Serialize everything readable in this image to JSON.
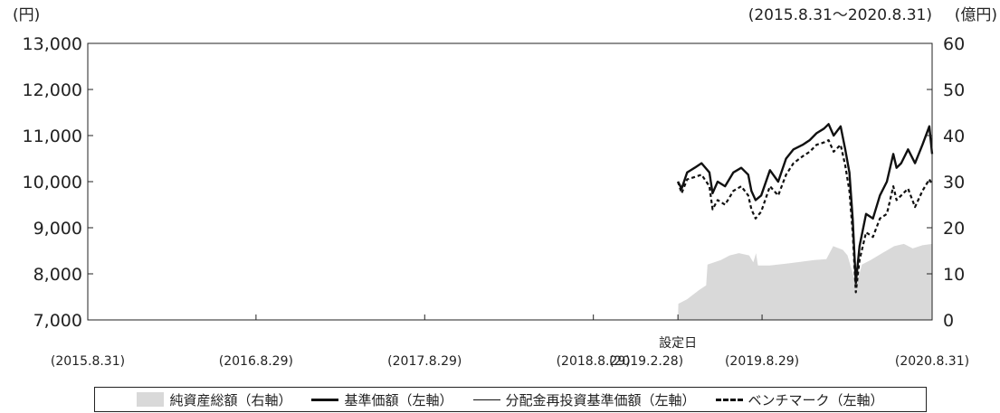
{
  "chart_data": {
    "type": "line",
    "unit_left": "(円)",
    "unit_right": "(億円)",
    "period": "(2015.8.31～2020.8.31)",
    "y_left": {
      "min": 7000,
      "max": 13000,
      "ticks": [
        "7,000",
        "8,000",
        "9,000",
        "10,000",
        "11,000",
        "12,000",
        "13,000"
      ]
    },
    "y_right": {
      "min": 0,
      "max": 60,
      "ticks": [
        "0",
        "10",
        "20",
        "30",
        "40",
        "50",
        "60"
      ]
    },
    "x_ticks": [
      "(2015.8.31)",
      "(2016.8.29)",
      "(2017.8.29)",
      "(2018.8.29)",
      "(2019.2.28)",
      "(2019.8.29)",
      "(2020.8.31)"
    ],
    "x_tick_dates": [
      "2015-08-31",
      "2016-08-29",
      "2017-08-29",
      "2018-08-29",
      "2019-02-28",
      "2019-08-29",
      "2020-08-31"
    ],
    "inception_label": "設定日",
    "inception_date": "2019-02-28",
    "legend": [
      "純資産総額（右軸）",
      "基準価額（左軸）",
      "分配金再投資基準価額（左軸）",
      "ベンチマーク（左軸）"
    ],
    "series": [
      {
        "name": "純資産総額（右軸）",
        "axis": "right",
        "style": "area",
        "color": "#d9d9d9",
        "points": [
          [
            "2019-02-28",
            0
          ],
          [
            "2019-03-01",
            3.5
          ],
          [
            "2019-03-20",
            4.5
          ],
          [
            "2019-04-15",
            6.5
          ],
          [
            "2019-04-30",
            7.5
          ],
          [
            "2019-05-03",
            12.0
          ],
          [
            "2019-06-01",
            13.0
          ],
          [
            "2019-06-20",
            14.0
          ],
          [
            "2019-07-10",
            14.5
          ],
          [
            "2019-08-01",
            14.0
          ],
          [
            "2019-08-10",
            12.5
          ],
          [
            "2019-08-16",
            14.5
          ],
          [
            "2019-08-20",
            11.8
          ],
          [
            "2019-09-15",
            11.8
          ],
          [
            "2019-10-20",
            12.2
          ],
          [
            "2019-11-20",
            12.6
          ],
          [
            "2019-12-20",
            13.0
          ],
          [
            "2020-01-15",
            13.2
          ],
          [
            "2020-01-30",
            16.0
          ],
          [
            "2020-02-20",
            15.2
          ],
          [
            "2020-03-01",
            14.0
          ],
          [
            "2020-03-20",
            7.5
          ],
          [
            "2020-04-01",
            12.0
          ],
          [
            "2020-04-20",
            13.0
          ],
          [
            "2020-05-15",
            14.5
          ],
          [
            "2020-06-10",
            16.0
          ],
          [
            "2020-07-01",
            16.5
          ],
          [
            "2020-07-20",
            15.5
          ],
          [
            "2020-08-10",
            16.2
          ],
          [
            "2020-08-31",
            16.5
          ]
        ]
      },
      {
        "name": "基準価額（左軸）",
        "axis": "left",
        "style": "solid",
        "color": "#111111",
        "points": [
          [
            "2019-02-28",
            10000
          ],
          [
            "2019-03-08",
            9850
          ],
          [
            "2019-03-20",
            10200
          ],
          [
            "2019-04-05",
            10300
          ],
          [
            "2019-04-20",
            10400
          ],
          [
            "2019-05-07",
            10200
          ],
          [
            "2019-05-14",
            9750
          ],
          [
            "2019-05-25",
            10000
          ],
          [
            "2019-06-10",
            9900
          ],
          [
            "2019-06-28",
            10200
          ],
          [
            "2019-07-15",
            10300
          ],
          [
            "2019-07-30",
            10150
          ],
          [
            "2019-08-06",
            9800
          ],
          [
            "2019-08-15",
            9600
          ],
          [
            "2019-08-27",
            9700
          ],
          [
            "2019-09-15",
            10250
          ],
          [
            "2019-10-03",
            10000
          ],
          [
            "2019-10-20",
            10500
          ],
          [
            "2019-11-05",
            10700
          ],
          [
            "2019-11-25",
            10800
          ],
          [
            "2019-12-10",
            10900
          ],
          [
            "2019-12-25",
            11050
          ],
          [
            "2020-01-10",
            11150
          ],
          [
            "2020-01-20",
            11250
          ],
          [
            "2020-01-31",
            11000
          ],
          [
            "2020-02-15",
            11200
          ],
          [
            "2020-02-25",
            10700
          ],
          [
            "2020-03-05",
            10200
          ],
          [
            "2020-03-12",
            9200
          ],
          [
            "2020-03-19",
            7800
          ],
          [
            "2020-03-27",
            8600
          ],
          [
            "2020-04-10",
            9300
          ],
          [
            "2020-04-25",
            9200
          ],
          [
            "2020-05-10",
            9700
          ],
          [
            "2020-05-25",
            10000
          ],
          [
            "2020-06-08",
            10600
          ],
          [
            "2020-06-15",
            10300
          ],
          [
            "2020-06-25",
            10400
          ],
          [
            "2020-07-10",
            10700
          ],
          [
            "2020-07-25",
            10400
          ],
          [
            "2020-08-10",
            10800
          ],
          [
            "2020-08-25",
            11200
          ],
          [
            "2020-08-31",
            10600
          ]
        ]
      },
      {
        "name": "分配金再投資基準価額（左軸）",
        "axis": "left",
        "style": "solid-thin",
        "color": "#111111",
        "points": [
          [
            "2019-02-28",
            10000
          ],
          [
            "2019-03-08",
            9850
          ],
          [
            "2019-03-20",
            10200
          ],
          [
            "2019-04-05",
            10300
          ],
          [
            "2019-04-20",
            10400
          ],
          [
            "2019-05-07",
            10200
          ],
          [
            "2019-05-14",
            9750
          ],
          [
            "2019-05-25",
            10000
          ],
          [
            "2019-06-10",
            9900
          ],
          [
            "2019-06-28",
            10200
          ],
          [
            "2019-07-15",
            10300
          ],
          [
            "2019-07-30",
            10150
          ],
          [
            "2019-08-06",
            9800
          ],
          [
            "2019-08-15",
            9600
          ],
          [
            "2019-08-27",
            9700
          ],
          [
            "2019-09-15",
            10250
          ],
          [
            "2019-10-03",
            10000
          ],
          [
            "2019-10-20",
            10500
          ],
          [
            "2019-11-05",
            10700
          ],
          [
            "2019-11-25",
            10800
          ],
          [
            "2019-12-10",
            10900
          ],
          [
            "2019-12-25",
            11050
          ],
          [
            "2020-01-10",
            11150
          ],
          [
            "2020-01-20",
            11250
          ],
          [
            "2020-01-31",
            11000
          ],
          [
            "2020-02-15",
            11200
          ],
          [
            "2020-02-25",
            10700
          ],
          [
            "2020-03-05",
            10200
          ],
          [
            "2020-03-12",
            9200
          ],
          [
            "2020-03-19",
            7800
          ],
          [
            "2020-03-27",
            8600
          ],
          [
            "2020-04-10",
            9300
          ],
          [
            "2020-04-25",
            9200
          ],
          [
            "2020-05-10",
            9700
          ],
          [
            "2020-05-25",
            10000
          ],
          [
            "2020-06-08",
            10600
          ],
          [
            "2020-06-15",
            10300
          ],
          [
            "2020-06-25",
            10400
          ],
          [
            "2020-07-10",
            10700
          ],
          [
            "2020-07-25",
            10400
          ],
          [
            "2020-08-10",
            10800
          ],
          [
            "2020-08-25",
            11200
          ],
          [
            "2020-08-31",
            10600
          ]
        ]
      },
      {
        "name": "ベンチマーク（左軸）",
        "axis": "left",
        "style": "dashed",
        "color": "#111111",
        "points": [
          [
            "2019-02-28",
            10000
          ],
          [
            "2019-03-08",
            9750
          ],
          [
            "2019-03-20",
            10050
          ],
          [
            "2019-04-05",
            10100
          ],
          [
            "2019-04-20",
            10150
          ],
          [
            "2019-05-07",
            9900
          ],
          [
            "2019-05-14",
            9400
          ],
          [
            "2019-05-25",
            9600
          ],
          [
            "2019-06-10",
            9500
          ],
          [
            "2019-06-28",
            9800
          ],
          [
            "2019-07-15",
            9900
          ],
          [
            "2019-07-30",
            9700
          ],
          [
            "2019-08-06",
            9400
          ],
          [
            "2019-08-15",
            9200
          ],
          [
            "2019-08-27",
            9350
          ],
          [
            "2019-09-15",
            9900
          ],
          [
            "2019-10-03",
            9700
          ],
          [
            "2019-10-20",
            10150
          ],
          [
            "2019-11-05",
            10400
          ],
          [
            "2019-11-25",
            10550
          ],
          [
            "2019-12-10",
            10650
          ],
          [
            "2019-12-25",
            10800
          ],
          [
            "2020-01-10",
            10850
          ],
          [
            "2020-01-20",
            10900
          ],
          [
            "2020-01-31",
            10650
          ],
          [
            "2020-02-15",
            10800
          ],
          [
            "2020-02-25",
            10350
          ],
          [
            "2020-03-05",
            9800
          ],
          [
            "2020-03-12",
            8900
          ],
          [
            "2020-03-19",
            7600
          ],
          [
            "2020-03-27",
            8300
          ],
          [
            "2020-04-10",
            8900
          ],
          [
            "2020-04-25",
            8800
          ],
          [
            "2020-05-10",
            9200
          ],
          [
            "2020-05-25",
            9300
          ],
          [
            "2020-06-08",
            9900
          ],
          [
            "2020-06-15",
            9600
          ],
          [
            "2020-06-25",
            9700
          ],
          [
            "2020-07-10",
            9850
          ],
          [
            "2020-07-25",
            9450
          ],
          [
            "2020-08-10",
            9800
          ],
          [
            "2020-08-25",
            10050
          ],
          [
            "2020-08-31",
            9950
          ]
        ]
      }
    ]
  }
}
